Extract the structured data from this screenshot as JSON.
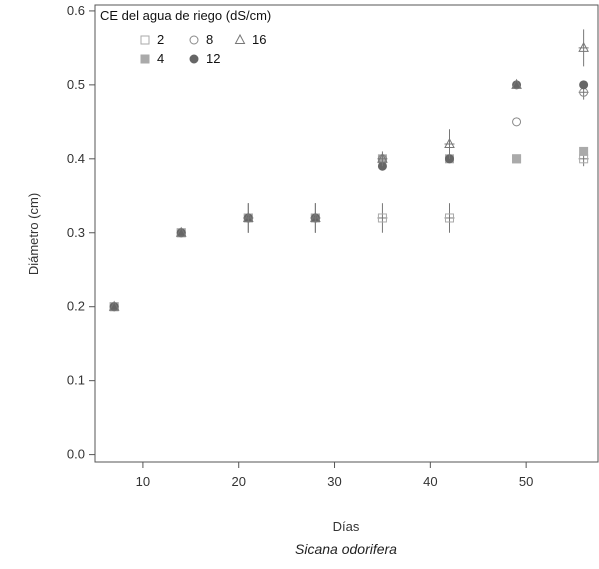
{
  "chart_data": {
    "type": "scatter",
    "title": "",
    "xlabel": "Días",
    "ylabel": "Diámetro (cm)",
    "caption": "Sicana odorifera",
    "xlim": [
      5,
      57.5
    ],
    "ylim": [
      -0.01,
      0.608
    ],
    "x_ticks": [
      10,
      20,
      30,
      40,
      50
    ],
    "y_ticks": [
      0.0,
      0.1,
      0.2,
      0.3,
      0.4,
      0.5,
      0.6
    ],
    "x_tick_labels": [
      "10",
      "20",
      "30",
      "40",
      "50"
    ],
    "y_tick_labels": [
      "0.0",
      "0.1",
      "0.2",
      "0.3",
      "0.4",
      "0.5",
      "0.6"
    ],
    "grid": false,
    "legend": {
      "title": "CE del agua de riego (dS/cm)",
      "placement": "top-left",
      "entries": [
        "2",
        "8",
        "16",
        "4",
        "12"
      ]
    },
    "series": [
      {
        "name": "2",
        "marker": "square-open",
        "color": "#aaaaaa",
        "x": [
          7,
          14,
          21,
          28,
          35,
          42,
          49,
          56
        ],
        "y": [
          0.2,
          0.3,
          0.32,
          0.32,
          0.32,
          0.32,
          0.4,
          0.4
        ],
        "err": [
          0,
          0,
          0.02,
          0.02,
          0.02,
          0.02,
          0,
          0.01
        ]
      },
      {
        "name": "4",
        "marker": "square-filled",
        "color": "#aaaaaa",
        "x": [
          7,
          14,
          21,
          28,
          35,
          42,
          49,
          56
        ],
        "y": [
          0.2,
          0.3,
          0.32,
          0.32,
          0.4,
          0.4,
          0.4,
          0.41
        ],
        "err": [
          0,
          0,
          0,
          0,
          0,
          0,
          0,
          0
        ]
      },
      {
        "name": "8",
        "marker": "circle-open",
        "color": "#888888",
        "x": [
          7,
          14,
          21,
          28,
          35,
          42,
          49,
          56
        ],
        "y": [
          0.2,
          0.3,
          0.32,
          0.32,
          0.4,
          0.4,
          0.45,
          0.49
        ],
        "err": [
          0,
          0,
          0,
          0,
          0,
          0,
          0,
          0.01
        ]
      },
      {
        "name": "12",
        "marker": "circle-filled",
        "color": "#666666",
        "x": [
          7,
          14,
          21,
          28,
          35,
          42,
          49,
          56
        ],
        "y": [
          0.2,
          0.3,
          0.32,
          0.32,
          0.39,
          0.4,
          0.5,
          0.5
        ],
        "err": [
          0,
          0,
          0,
          0,
          0,
          0,
          0,
          0
        ]
      },
      {
        "name": "16",
        "marker": "triangle-open",
        "color": "#777777",
        "x": [
          7,
          14,
          21,
          28,
          35,
          42,
          49,
          56
        ],
        "y": [
          0.2,
          0.3,
          0.32,
          0.32,
          0.4,
          0.42,
          0.5,
          0.55
        ],
        "err": [
          0,
          0,
          0.02,
          0.02,
          0.01,
          0.02,
          0,
          0.025
        ]
      }
    ]
  }
}
